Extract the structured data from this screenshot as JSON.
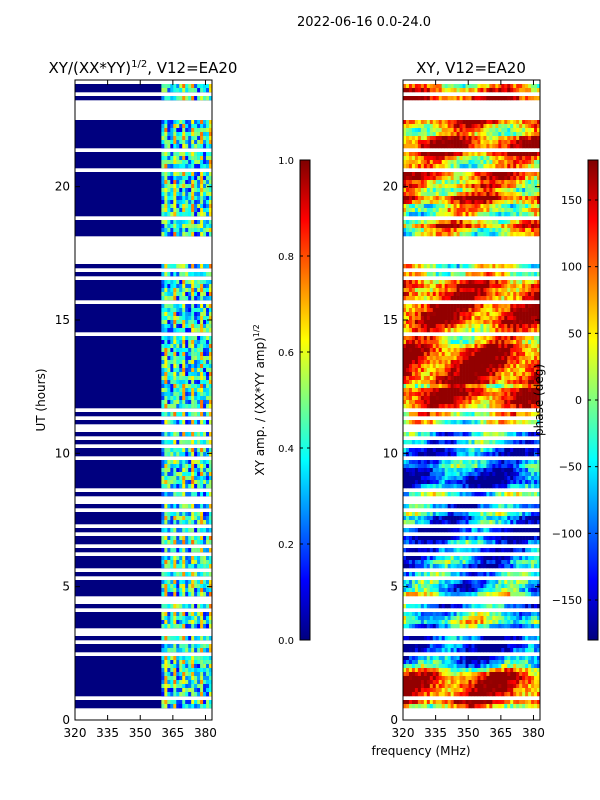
{
  "suptitle": "2022-06-16 0.0-24.0",
  "shared_xlabel": "frequency (MHz)",
  "colors": {
    "jet": [
      "#00007f",
      "#0000ff",
      "#007fff",
      "#00ffff",
      "#7fff7f",
      "#ffff00",
      "#ff7f00",
      "#ff0000",
      "#7f0000"
    ],
    "masked": "#ffffff",
    "axis": "#000000"
  },
  "chart_data": [
    {
      "type": "heatmap",
      "title_main": "XY/(XX*YY)",
      "title_exp": "1/2",
      "title_rest": ", V12=EA20",
      "x": {
        "label": "frequency (MHz)",
        "ticks": [
          320,
          335,
          350,
          365,
          380
        ],
        "lim": [
          320,
          383
        ]
      },
      "y": {
        "label": "UT (hours)",
        "ticks": [
          0,
          5,
          10,
          15,
          20
        ],
        "lim": [
          0,
          24
        ]
      },
      "bright_band_mhz": [
        360,
        382
      ],
      "colorbar": {
        "label_main": "XY amp. / (XX*YY amp)",
        "label_exp": "1/2",
        "range": [
          0,
          1
        ],
        "ticks": [
          "0.0",
          "0.2",
          "0.4",
          "0.6",
          "0.8",
          "1.0"
        ]
      }
    },
    {
      "type": "heatmap",
      "title": "XY, V12=EA20",
      "x": {
        "label": "frequency (MHz)",
        "ticks": [
          320,
          335,
          350,
          365,
          380
        ],
        "lim": [
          320,
          383
        ]
      },
      "y": {
        "label": "",
        "ticks": [
          0,
          5,
          10,
          15,
          20
        ],
        "lim": [
          0,
          24
        ]
      },
      "colorbar": {
        "label": "phase (deg)",
        "range": [
          -180,
          180
        ],
        "ticks": [
          "150",
          "100",
          "50",
          "0",
          "−50",
          "−100",
          "−150"
        ]
      }
    }
  ]
}
